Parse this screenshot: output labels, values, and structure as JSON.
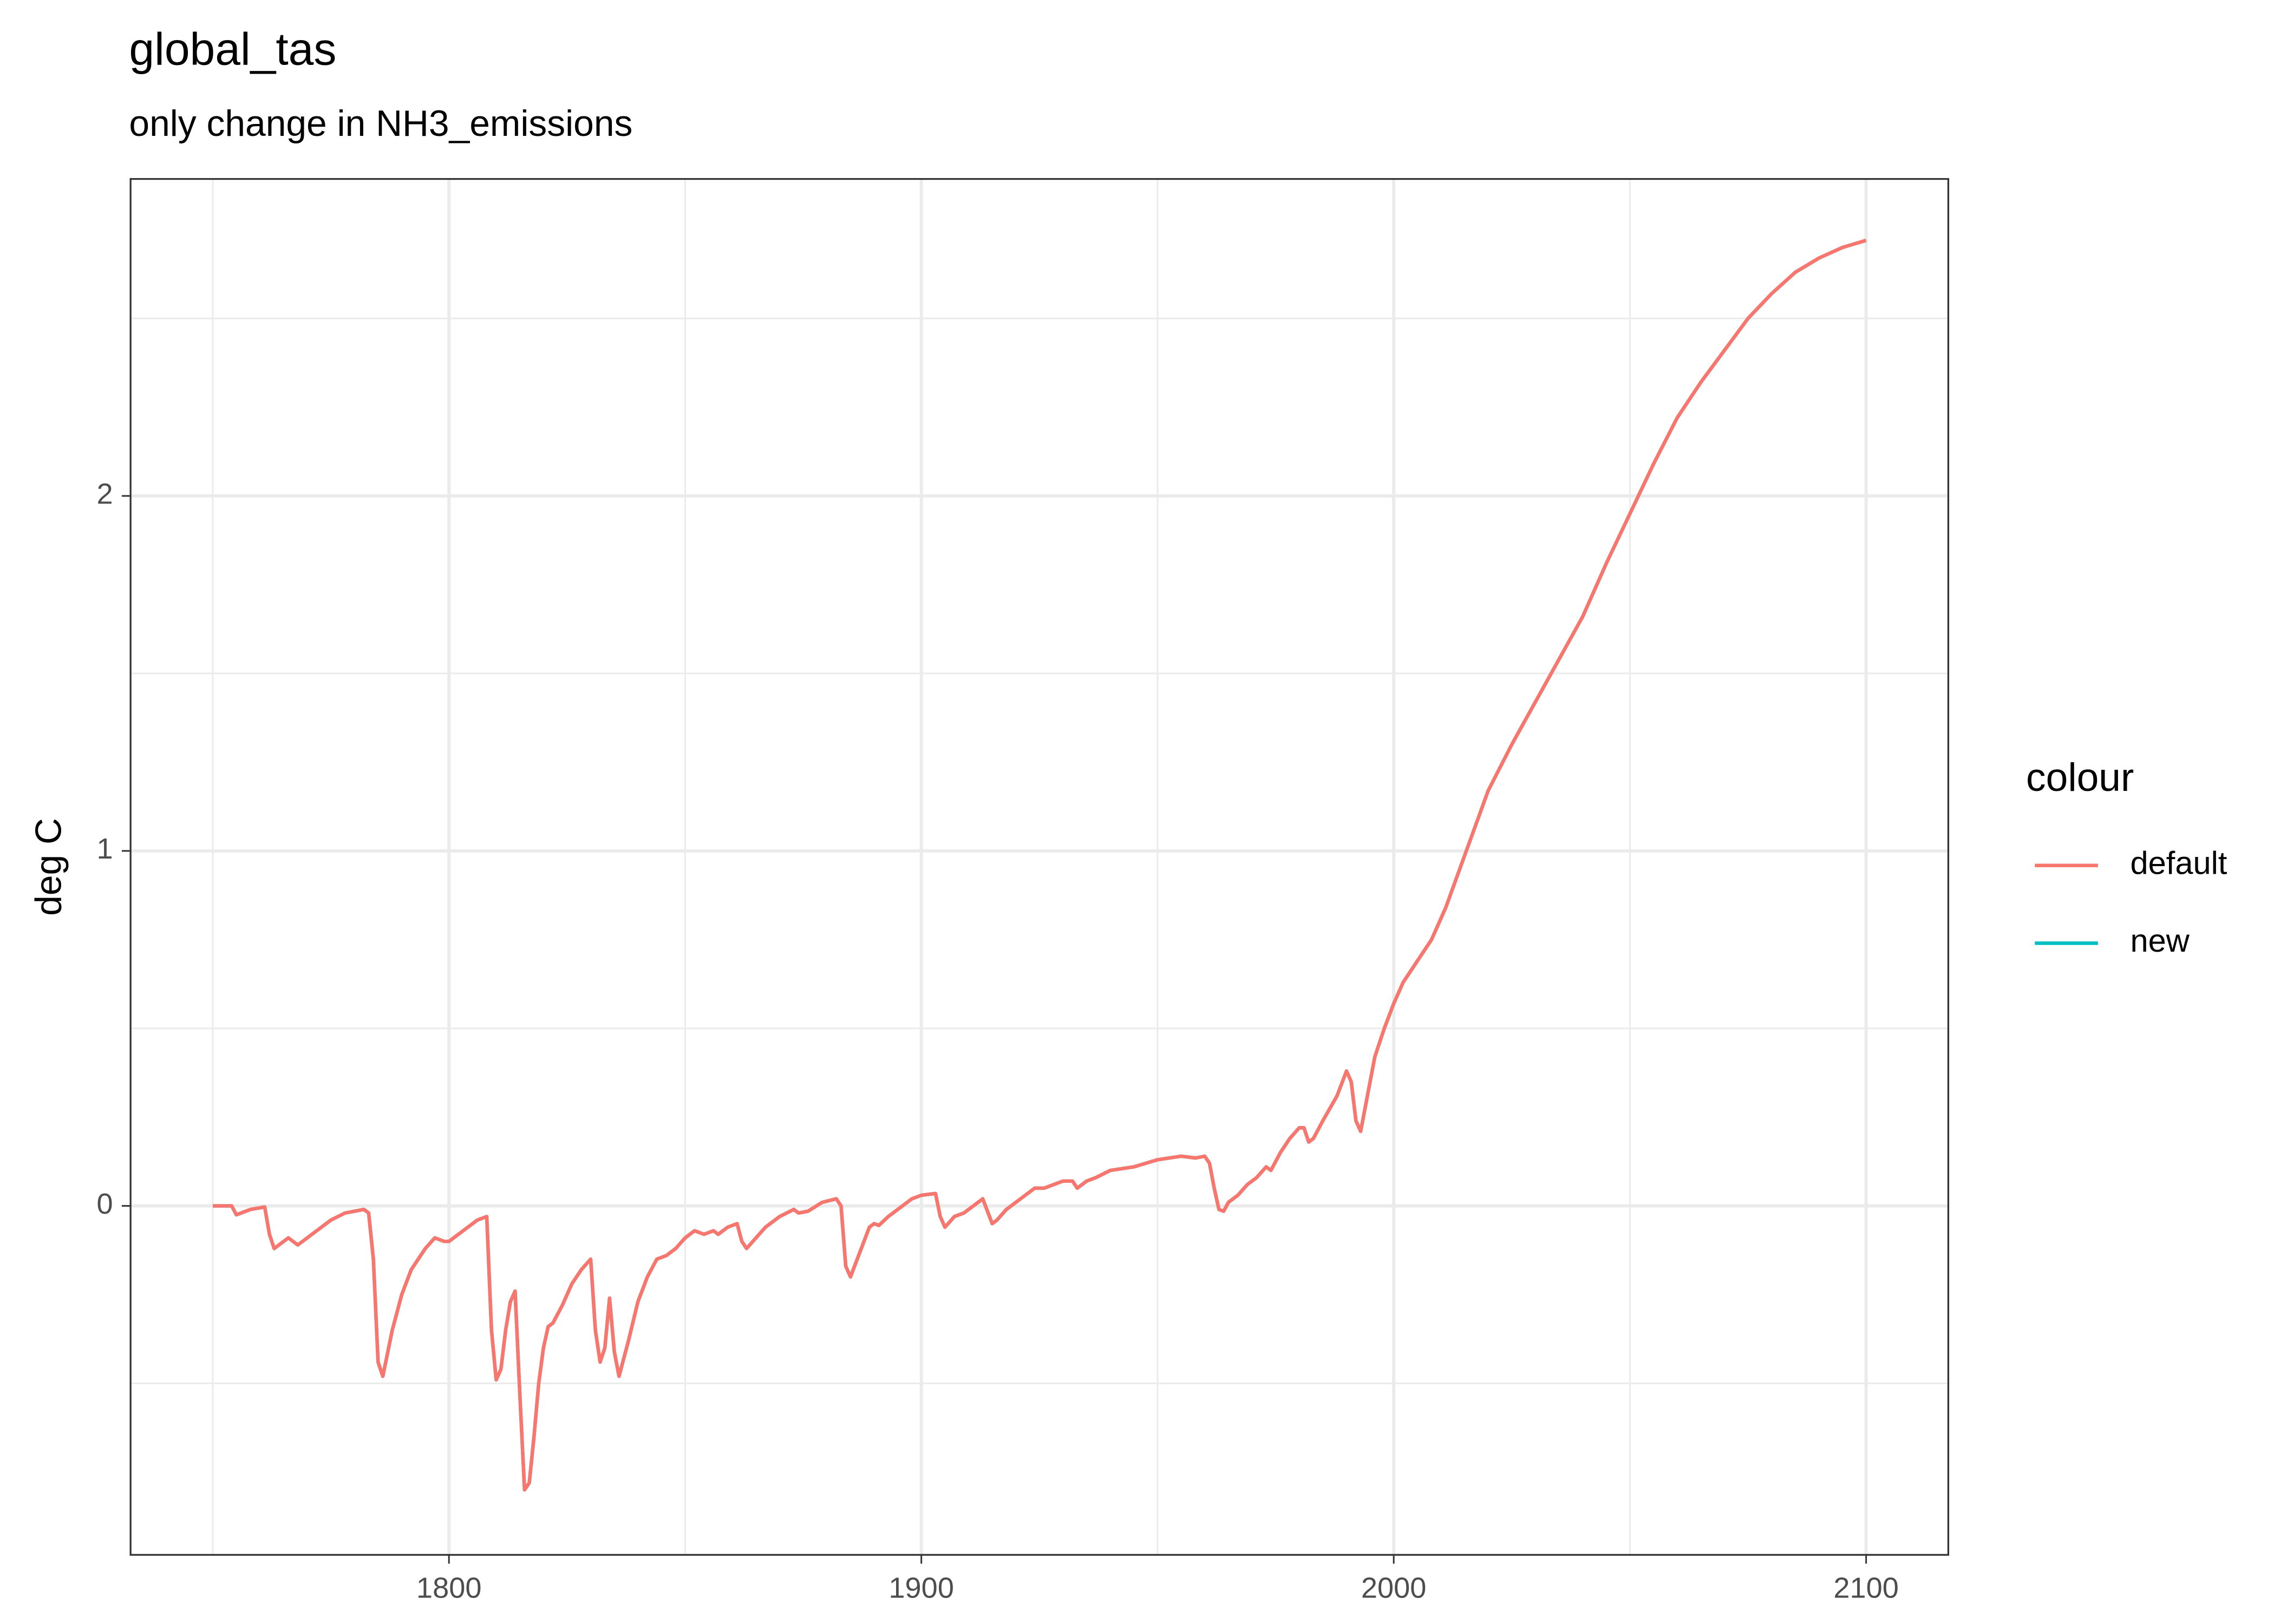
{
  "chart_data": {
    "type": "line",
    "title": "global_tas",
    "subtitle": "only change in NH3_emissions",
    "y_label": "deg C",
    "legend_title": "colour",
    "legend_position": "right",
    "grid": true,
    "xlim": [
      1732.6,
      2117.4
    ],
    "ylim": [
      -0.983,
      2.893
    ],
    "xticks": [
      1800,
      1900,
      2000,
      2100
    ],
    "yticks": [
      0,
      1,
      2
    ],
    "xminor": [
      1750,
      1850,
      1950,
      2050
    ],
    "yminor": [
      -0.5,
      0.5,
      1.5,
      2.5
    ],
    "x": [
      1750,
      1753,
      1754,
      1755,
      1758,
      1761,
      1762,
      1763,
      1765,
      1766,
      1768,
      1770,
      1772,
      1775,
      1778,
      1782,
      1783,
      1784,
      1785,
      1786,
      1788,
      1790,
      1792,
      1795,
      1797,
      1799,
      1800,
      1803,
      1806,
      1808,
      1809,
      1810,
      1811,
      1812,
      1813,
      1814,
      1815,
      1816,
      1817,
      1818,
      1819,
      1820,
      1821,
      1822,
      1824,
      1826,
      1828,
      1830,
      1831,
      1832,
      1833,
      1834,
      1835,
      1836,
      1838,
      1840,
      1842,
      1844,
      1846,
      1848,
      1850,
      1852,
      1854,
      1856,
      1857,
      1859,
      1861,
      1862,
      1863,
      1865,
      1867,
      1870,
      1873,
      1874,
      1876,
      1879,
      1882,
      1883,
      1884,
      1885,
      1887,
      1889,
      1890,
      1891,
      1893,
      1896,
      1898,
      1900,
      1903,
      1904,
      1905,
      1907,
      1909,
      1912,
      1913,
      1915,
      1916,
      1918,
      1921,
      1924,
      1926,
      1928,
      1930,
      1932,
      1933,
      1935,
      1937,
      1940,
      1945,
      1950,
      1955,
      1958,
      1960,
      1961,
      1962,
      1963,
      1964,
      1965,
      1967,
      1969,
      1971,
      1973,
      1974,
      1976,
      1978,
      1980,
      1981,
      1982,
      1983,
      1985,
      1988,
      1990,
      1991,
      1992,
      1993,
      1995,
      1996,
      1998,
      2000,
      2002,
      2005,
      2008,
      2011,
      2014,
      2017,
      2020,
      2025,
      2030,
      2035,
      2040,
      2045,
      2050,
      2055,
      2060,
      2065,
      2070,
      2075,
      2080,
      2085,
      2090,
      2095,
      2100
    ],
    "series": [
      {
        "name": "default",
        "color": "#f8766d",
        "values": [
          0,
          0,
          0,
          -0.025,
          -0.01,
          -0.003,
          -0.08,
          -0.12,
          -0.1,
          -0.09,
          -0.11,
          -0.09,
          -0.07,
          -0.04,
          -0.02,
          -0.01,
          -0.02,
          -0.15,
          -0.44,
          -0.48,
          -0.35,
          -0.25,
          -0.18,
          -0.12,
          -0.09,
          -0.1,
          -0.1,
          -0.07,
          -0.04,
          -0.03,
          -0.35,
          -0.49,
          -0.46,
          -0.35,
          -0.27,
          -0.24,
          -0.53,
          -0.8,
          -0.78,
          -0.65,
          -0.5,
          -0.4,
          -0.34,
          -0.33,
          -0.28,
          -0.22,
          -0.18,
          -0.15,
          -0.35,
          -0.44,
          -0.4,
          -0.26,
          -0.41,
          -0.48,
          -0.38,
          -0.27,
          -0.2,
          -0.15,
          -0.14,
          -0.12,
          -0.09,
          -0.07,
          -0.08,
          -0.07,
          -0.08,
          -0.06,
          -0.05,
          -0.1,
          -0.12,
          -0.09,
          -0.06,
          -0.03,
          -0.01,
          -0.02,
          -0.015,
          0.01,
          0.02,
          0,
          -0.17,
          -0.2,
          -0.13,
          -0.06,
          -0.05,
          -0.055,
          -0.03,
          0,
          0.02,
          0.03,
          0.035,
          -0.03,
          -0.06,
          -0.03,
          -0.02,
          0.01,
          0.02,
          -0.05,
          -0.04,
          -0.01,
          0.02,
          0.05,
          0.05,
          0.06,
          0.07,
          0.07,
          0.05,
          0.07,
          0.08,
          0.1,
          0.11,
          0.13,
          0.14,
          0.135,
          0.14,
          0.12,
          0.05,
          -0.01,
          -0.015,
          0.01,
          0.03,
          0.06,
          0.08,
          0.11,
          0.1,
          0.15,
          0.19,
          0.22,
          0.22,
          0.18,
          0.19,
          0.24,
          0.31,
          0.38,
          0.35,
          0.24,
          0.21,
          0.35,
          0.42,
          0.5,
          0.57,
          0.63,
          0.69,
          0.75,
          0.84,
          0.95,
          1.06,
          1.17,
          1.3,
          1.42,
          1.54,
          1.66,
          1.81,
          1.95,
          2.09,
          2.22,
          2.32,
          2.41,
          2.5,
          2.57,
          2.63,
          2.67,
          2.7,
          2.72
        ]
      },
      {
        "name": "new",
        "color": "#00bfc4",
        "values": [
          0,
          0,
          0,
          -0.025,
          -0.01,
          -0.003,
          -0.08,
          -0.12,
          -0.1,
          -0.09,
          -0.11,
          -0.09,
          -0.07,
          -0.04,
          -0.02,
          -0.01,
          -0.02,
          -0.15,
          -0.44,
          -0.48,
          -0.35,
          -0.25,
          -0.18,
          -0.12,
          -0.09,
          -0.1,
          -0.1,
          -0.07,
          -0.04,
          -0.03,
          -0.35,
          -0.49,
          -0.46,
          -0.35,
          -0.27,
          -0.24,
          -0.53,
          -0.8,
          -0.78,
          -0.65,
          -0.5,
          -0.4,
          -0.34,
          -0.33,
          -0.28,
          -0.22,
          -0.18,
          -0.15,
          -0.35,
          -0.44,
          -0.4,
          -0.26,
          -0.41,
          -0.48,
          -0.38,
          -0.27,
          -0.2,
          -0.15,
          -0.14,
          -0.12,
          -0.09,
          -0.07,
          -0.08,
          -0.07,
          -0.08,
          -0.06,
          -0.05,
          -0.1,
          -0.12,
          -0.09,
          -0.06,
          -0.03,
          -0.01,
          -0.02,
          -0.015,
          0.01,
          0.02,
          0,
          -0.17,
          -0.2,
          -0.13,
          -0.06,
          -0.05,
          -0.055,
          -0.03,
          0,
          0.02,
          0.03,
          0.035,
          -0.03,
          -0.06,
          -0.03,
          -0.02,
          0.01,
          0.02,
          -0.05,
          -0.04,
          -0.01,
          0.02,
          0.05,
          0.05,
          0.06,
          0.07,
          0.07,
          0.05,
          0.07,
          0.08,
          0.1,
          0.11,
          0.13,
          0.14,
          0.135,
          0.14,
          0.12,
          0.05,
          -0.01,
          -0.015,
          0.01,
          0.03,
          0.06,
          0.08,
          0.11,
          0.1,
          0.15,
          0.19,
          0.22,
          0.22,
          0.18,
          0.19,
          0.24,
          0.31,
          0.38,
          0.35,
          0.24,
          0.21,
          0.35,
          0.42,
          0.5,
          0.57,
          0.63,
          0.69,
          0.75,
          0.84,
          0.95,
          1.06,
          1.17,
          1.3,
          1.42,
          1.54,
          1.66,
          1.81,
          1.95,
          2.09,
          2.22,
          2.32,
          2.41,
          2.5,
          2.57,
          2.63,
          2.67,
          2.7,
          2.72
        ]
      }
    ]
  }
}
